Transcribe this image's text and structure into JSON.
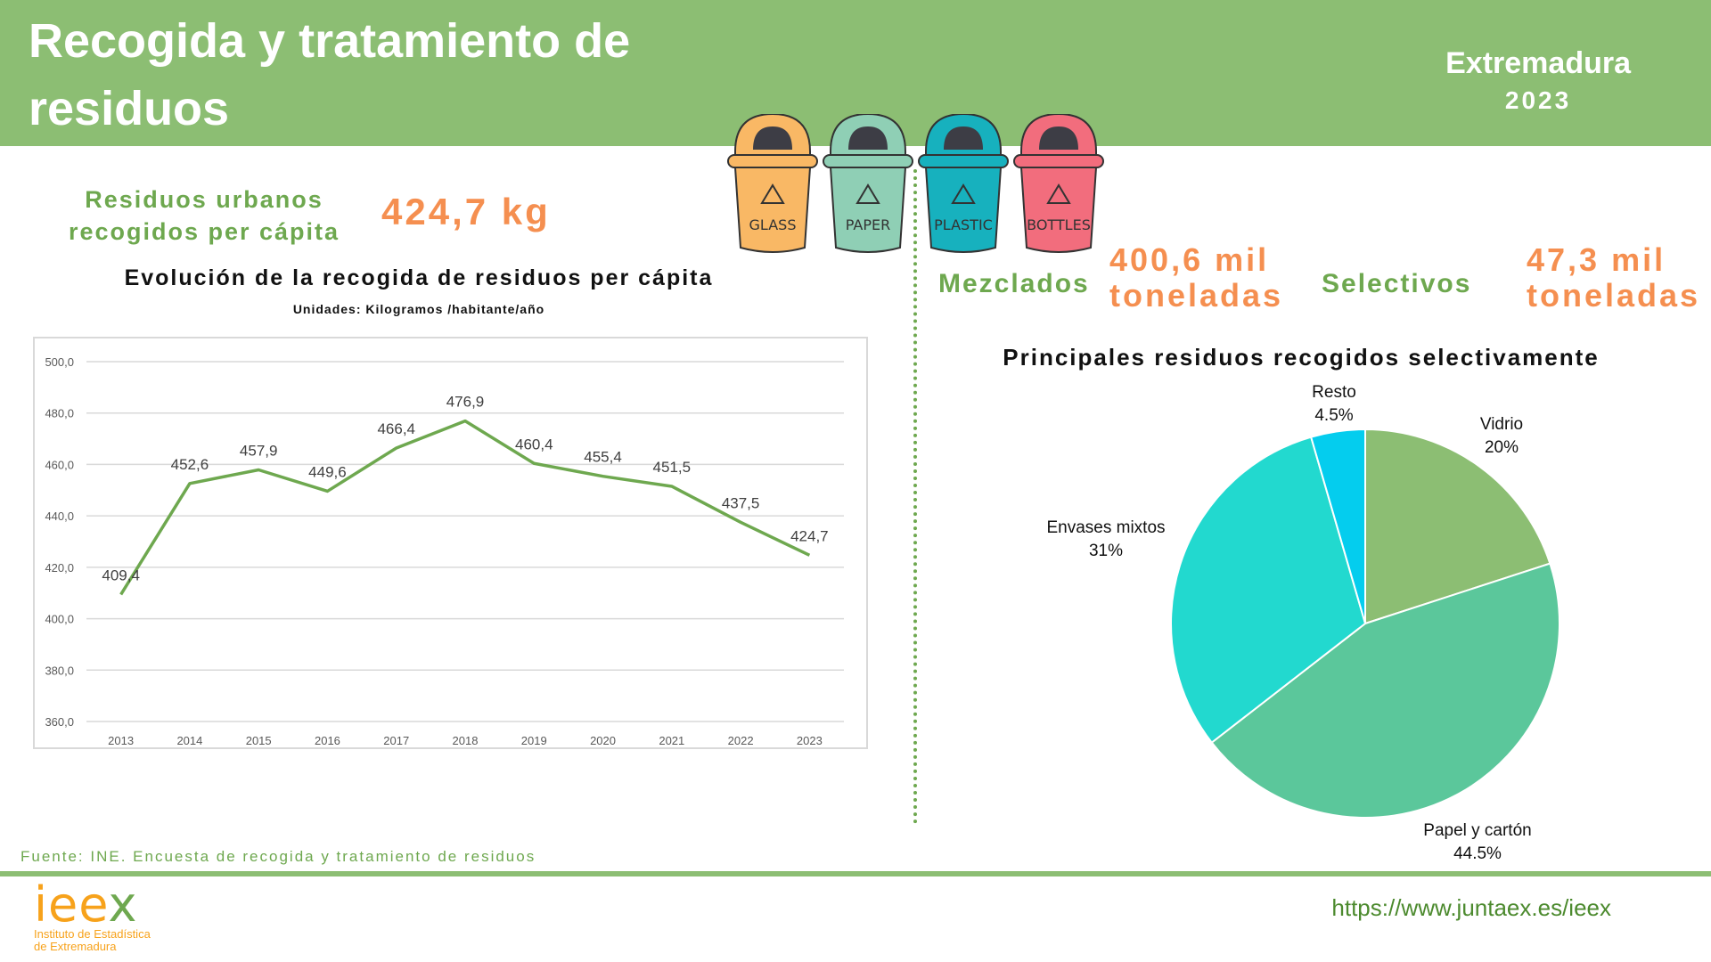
{
  "header": {
    "title": "Recogida y tratamiento de residuos",
    "region": "Extremadura",
    "year": "2023"
  },
  "bins": [
    {
      "label": "GLASS",
      "color": "#f9b865"
    },
    {
      "label": "PAPER",
      "color": "#8fcfb5"
    },
    {
      "label": "PLASTIC",
      "color": "#17b1be"
    },
    {
      "label": "BOTTLES",
      "color": "#f26d7d"
    }
  ],
  "kpi": {
    "label": "Residuos urbanos recogidos per cápita",
    "value": "424,7 kg"
  },
  "totals": {
    "mixed_label": "Mezclados",
    "mixed_value_line1": "400,6 mil",
    "mixed_value_line2": "toneladas",
    "selective_label": "Selectivos",
    "selective_value_line1": "47,3 mil",
    "selective_value_line2": "toneladas"
  },
  "chart_data": [
    {
      "type": "line",
      "title": "Evolución de la recogida de residuos per cápita",
      "subtitle": "Unidades: Kilogramos /habitante/año",
      "x": [
        "2013",
        "2014",
        "2015",
        "2016",
        "2017",
        "2018",
        "2019",
        "2020",
        "2021",
        "2022",
        "2023"
      ],
      "values": [
        409.4,
        452.6,
        457.9,
        449.6,
        466.4,
        476.9,
        460.4,
        455.4,
        451.5,
        437.5,
        424.7
      ],
      "value_labels": [
        "409,4",
        "452,6",
        "457,9",
        "449,6",
        "466,4",
        "476,9",
        "460,4",
        "455,4",
        "451,5",
        "437,5",
        "424,7"
      ],
      "ylim": [
        360,
        500
      ],
      "yticks": [
        "360,0",
        "380,0",
        "400,0",
        "420,0",
        "440,0",
        "460,0",
        "480,0",
        "500,0"
      ],
      "grid": true,
      "color": "#6ea84f"
    },
    {
      "type": "pie",
      "title": "Principales residuos recogidos selectivamente",
      "slices": [
        {
          "label": "Vidrio",
          "pct_label": "20%",
          "value": 20,
          "color": "#8cbe73"
        },
        {
          "label": "Papel y cartón",
          "pct_label": "44.5%",
          "value": 44.5,
          "color": "#5bc79b"
        },
        {
          "label": "Envases mixtos",
          "pct_label": "31%",
          "value": 31,
          "color": "#22d9cf"
        },
        {
          "label": "Resto",
          "pct_label": "4.5%",
          "value": 4.5,
          "color": "#04cdee"
        }
      ]
    }
  ],
  "footer": {
    "source": "Fuente: INE. Encuesta de recogida y tratamiento de residuos",
    "logo_word_a": "iee",
    "logo_word_b": "x",
    "logo_sub1": "Instituto de Estadística",
    "logo_sub2": "de Extremadura",
    "url": "https://www.juntaex.es/ieex"
  }
}
